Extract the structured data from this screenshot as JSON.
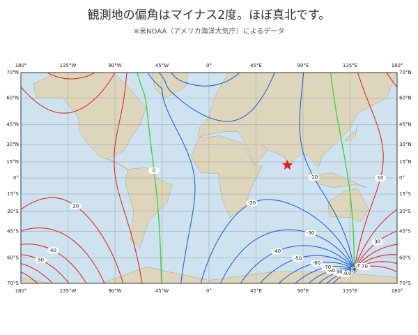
{
  "title": "観測地の偏角はマイナス2度。ほぼ真北です。",
  "subtitle": "※米NOAA（アメリカ海洋大気庁）によるデータ",
  "map": {
    "lon_ticks": [
      {
        "value": -180,
        "label": "180°"
      },
      {
        "value": -135,
        "label": "135°W"
      },
      {
        "value": -90,
        "label": "90°W"
      },
      {
        "value": -45,
        "label": "45°W"
      },
      {
        "value": 0,
        "label": "0°"
      },
      {
        "value": 45,
        "label": "45°E"
      },
      {
        "value": 90,
        "label": "90°E"
      },
      {
        "value": 135,
        "label": "135°E"
      },
      {
        "value": 180,
        "label": "180°"
      }
    ],
    "lat_ticks": [
      {
        "value": 70,
        "label": "70°N"
      },
      {
        "value": 60,
        "label": "60°N"
      },
      {
        "value": 45,
        "label": "45°N"
      },
      {
        "value": 30,
        "label": "30°N"
      },
      {
        "value": 15,
        "label": "15°N"
      },
      {
        "value": 0,
        "label": "0°"
      },
      {
        "value": -15,
        "label": "15°S"
      },
      {
        "value": -30,
        "label": "30°S"
      },
      {
        "value": -45,
        "label": "45°S"
      },
      {
        "value": -60,
        "label": "60°S"
      },
      {
        "value": -70,
        "label": "70°S"
      }
    ],
    "contour_levels": [
      -110,
      -100,
      -90,
      -80,
      -70,
      -60,
      -50,
      -40,
      -30,
      -20,
      -10,
      0,
      10,
      20,
      30,
      40,
      50,
      60,
      70
    ],
    "observer": {
      "lon": 75,
      "lat": 12
    },
    "south_magnetic_pole": {
      "lon": 139,
      "lat": -65
    }
  }
}
